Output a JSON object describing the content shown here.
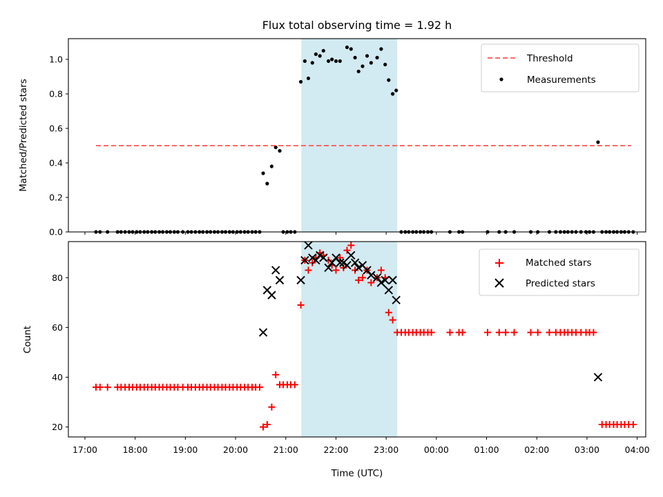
{
  "chart_data": [
    {
      "type": "scatter",
      "title": "Flux total observing time = 1.92 h",
      "ylabel": "Matched/Predicted stars",
      "xlabel": "",
      "ylim": [
        0,
        1.12
      ],
      "y_ticks": [
        "0.0",
        "0.2",
        "0.4",
        "0.6",
        "0.8",
        "1.0"
      ],
      "y_tick_values": [
        0,
        0.2,
        0.4,
        0.6,
        0.8,
        1.0
      ],
      "x_unit": "hours since 17:00 UTC",
      "xlim": [
        -0.33,
        11.17
      ],
      "x_tick_values": [
        0,
        1,
        2,
        3,
        4,
        5,
        6,
        7,
        8,
        9,
        10,
        11
      ],
      "shaded_interval": {
        "x": [
          4.31,
          6.22
        ],
        "color": "#add8e6"
      },
      "legend_placement": "upper-right",
      "threshold": {
        "name": "Threshold",
        "y": 0.5,
        "x": [
          0.22,
          10.88
        ],
        "color": "#ff6666",
        "style": "dashed"
      },
      "series": [
        {
          "name": "Measurements",
          "color": "#000000",
          "marker": "dot",
          "points": [
            [
              0.22,
              0
            ],
            [
              0.3,
              0
            ],
            [
              0.45,
              0
            ],
            [
              0.65,
              0
            ],
            [
              0.72,
              0
            ],
            [
              0.8,
              0
            ],
            [
              0.88,
              0
            ],
            [
              0.95,
              0
            ],
            [
              1.03,
              0
            ],
            [
              1.1,
              0
            ],
            [
              1.18,
              0
            ],
            [
              1.25,
              0
            ],
            [
              1.33,
              0
            ],
            [
              1.4,
              0
            ],
            [
              1.48,
              0
            ],
            [
              1.55,
              0
            ],
            [
              1.63,
              0
            ],
            [
              1.7,
              0
            ],
            [
              1.78,
              0
            ],
            [
              1.85,
              0
            ],
            [
              1.95,
              0
            ],
            [
              2.05,
              0
            ],
            [
              2.12,
              0
            ],
            [
              2.2,
              0
            ],
            [
              2.28,
              0
            ],
            [
              2.35,
              0
            ],
            [
              2.43,
              0
            ],
            [
              2.5,
              0
            ],
            [
              2.58,
              0
            ],
            [
              2.65,
              0
            ],
            [
              2.73,
              0
            ],
            [
              2.8,
              0
            ],
            [
              2.88,
              0
            ],
            [
              2.95,
              0
            ],
            [
              3.03,
              0
            ],
            [
              3.1,
              0
            ],
            [
              3.18,
              0
            ],
            [
              3.25,
              0
            ],
            [
              3.33,
              0
            ],
            [
              3.4,
              0
            ],
            [
              3.48,
              0
            ],
            [
              3.55,
              0.34
            ],
            [
              3.63,
              0.28
            ],
            [
              3.72,
              0.38
            ],
            [
              3.8,
              0.49
            ],
            [
              3.88,
              0.47
            ],
            [
              3.95,
              0
            ],
            [
              4.03,
              0
            ],
            [
              4.1,
              0
            ],
            [
              4.18,
              0
            ],
            [
              4.3,
              0.87
            ],
            [
              4.38,
              0.99
            ],
            [
              4.45,
              0.89
            ],
            [
              4.53,
              0.98
            ],
            [
              4.6,
              1.03
            ],
            [
              4.68,
              1.02
            ],
            [
              4.75,
              1.05
            ],
            [
              4.85,
              0.99
            ],
            [
              4.92,
              1.0
            ],
            [
              5.0,
              0.99
            ],
            [
              5.08,
              0.99
            ],
            [
              5.22,
              1.07
            ],
            [
              5.3,
              1.06
            ],
            [
              5.38,
              1.01
            ],
            [
              5.45,
              0.93
            ],
            [
              5.53,
              0.96
            ],
            [
              5.62,
              1.02
            ],
            [
              5.7,
              0.98
            ],
            [
              5.82,
              1.01
            ],
            [
              5.9,
              1.06
            ],
            [
              5.98,
              0.97
            ],
            [
              6.05,
              0.88
            ],
            [
              6.13,
              0.8
            ],
            [
              6.2,
              0.82
            ],
            [
              6.3,
              0
            ],
            [
              6.38,
              0
            ],
            [
              6.45,
              0
            ],
            [
              6.53,
              0
            ],
            [
              6.6,
              0
            ],
            [
              6.68,
              0
            ],
            [
              6.75,
              0
            ],
            [
              6.83,
              0
            ],
            [
              6.9,
              0
            ],
            [
              7.27,
              0
            ],
            [
              7.45,
              0
            ],
            [
              7.52,
              0
            ],
            [
              8.02,
              0
            ],
            [
              8.25,
              0
            ],
            [
              8.38,
              0
            ],
            [
              8.55,
              0
            ],
            [
              8.88,
              0
            ],
            [
              9.02,
              0
            ],
            [
              9.25,
              0
            ],
            [
              9.38,
              0
            ],
            [
              9.47,
              0
            ],
            [
              9.55,
              0
            ],
            [
              9.62,
              0
            ],
            [
              9.7,
              0
            ],
            [
              9.78,
              0
            ],
            [
              9.88,
              0
            ],
            [
              9.98,
              0
            ],
            [
              10.05,
              0
            ],
            [
              10.13,
              0
            ],
            [
              10.22,
              0.52
            ],
            [
              10.3,
              0
            ],
            [
              10.38,
              0
            ],
            [
              10.45,
              0
            ],
            [
              10.53,
              0
            ],
            [
              10.6,
              0
            ],
            [
              10.68,
              0
            ],
            [
              10.75,
              0
            ],
            [
              10.83,
              0
            ],
            [
              10.92,
              0
            ]
          ]
        }
      ]
    },
    {
      "type": "scatter",
      "title": "",
      "xlabel": "Time (UTC)",
      "ylabel": "Count",
      "ylim": [
        16,
        94.5
      ],
      "y_ticks": [
        "20",
        "40",
        "60",
        "80"
      ],
      "y_tick_values": [
        20,
        40,
        60,
        80
      ],
      "x_unit": "hours since 17:00 UTC",
      "xlim": [
        -0.33,
        11.17
      ],
      "x_ticks": [
        "17:00",
        "18:00",
        "19:00",
        "20:00",
        "21:00",
        "22:00",
        "23:00",
        "00:00",
        "01:00",
        "02:00",
        "03:00",
        "04:00"
      ],
      "x_tick_values": [
        0,
        1,
        2,
        3,
        4,
        5,
        6,
        7,
        8,
        9,
        10,
        11
      ],
      "shaded_interval": {
        "x": [
          4.31,
          6.22
        ],
        "color": "#add8e6"
      },
      "legend_placement": "upper-right",
      "series": [
        {
          "name": "Matched stars",
          "color": "#ff0000",
          "marker": "plus",
          "points": [
            [
              0.22,
              36
            ],
            [
              0.3,
              36
            ],
            [
              0.45,
              36
            ],
            [
              0.65,
              36
            ],
            [
              0.72,
              36
            ],
            [
              0.8,
              36
            ],
            [
              0.88,
              36
            ],
            [
              0.95,
              36
            ],
            [
              1.03,
              36
            ],
            [
              1.1,
              36
            ],
            [
              1.18,
              36
            ],
            [
              1.25,
              36
            ],
            [
              1.33,
              36
            ],
            [
              1.4,
              36
            ],
            [
              1.48,
              36
            ],
            [
              1.55,
              36
            ],
            [
              1.63,
              36
            ],
            [
              1.7,
              36
            ],
            [
              1.78,
              36
            ],
            [
              1.85,
              36
            ],
            [
              1.95,
              36
            ],
            [
              2.05,
              36
            ],
            [
              2.12,
              36
            ],
            [
              2.2,
              36
            ],
            [
              2.28,
              36
            ],
            [
              2.35,
              36
            ],
            [
              2.43,
              36
            ],
            [
              2.5,
              36
            ],
            [
              2.58,
              36
            ],
            [
              2.65,
              36
            ],
            [
              2.73,
              36
            ],
            [
              2.8,
              36
            ],
            [
              2.88,
              36
            ],
            [
              2.95,
              36
            ],
            [
              3.03,
              36
            ],
            [
              3.1,
              36
            ],
            [
              3.18,
              36
            ],
            [
              3.25,
              36
            ],
            [
              3.33,
              36
            ],
            [
              3.4,
              36
            ],
            [
              3.48,
              36
            ],
            [
              3.55,
              20
            ],
            [
              3.63,
              21
            ],
            [
              3.72,
              28
            ],
            [
              3.8,
              41
            ],
            [
              3.88,
              37
            ],
            [
              3.95,
              37
            ],
            [
              4.03,
              37
            ],
            [
              4.1,
              37
            ],
            [
              4.18,
              37
            ],
            [
              4.3,
              69
            ],
            [
              4.38,
              87
            ],
            [
              4.45,
              83
            ],
            [
              4.53,
              86
            ],
            [
              4.6,
              88
            ],
            [
              4.68,
              90
            ],
            [
              4.75,
              89
            ],
            [
              4.85,
              87
            ],
            [
              4.92,
              85
            ],
            [
              5.0,
              83
            ],
            [
              5.08,
              88
            ],
            [
              5.15,
              84
            ],
            [
              5.22,
              91
            ],
            [
              5.3,
              93
            ],
            [
              5.38,
              83
            ],
            [
              5.45,
              79
            ],
            [
              5.53,
              80
            ],
            [
              5.62,
              83
            ],
            [
              5.7,
              78
            ],
            [
              5.82,
              80
            ],
            [
              5.9,
              83
            ],
            [
              5.98,
              80
            ],
            [
              6.05,
              66
            ],
            [
              6.13,
              63
            ],
            [
              6.22,
              58
            ],
            [
              6.3,
              58
            ],
            [
              6.38,
              58
            ],
            [
              6.45,
              58
            ],
            [
              6.53,
              58
            ],
            [
              6.6,
              58
            ],
            [
              6.68,
              58
            ],
            [
              6.75,
              58
            ],
            [
              6.83,
              58
            ],
            [
              6.9,
              58
            ],
            [
              7.27,
              58
            ],
            [
              7.45,
              58
            ],
            [
              7.52,
              58
            ],
            [
              8.02,
              58
            ],
            [
              8.25,
              58
            ],
            [
              8.38,
              58
            ],
            [
              8.55,
              58
            ],
            [
              8.88,
              58
            ],
            [
              9.02,
              58
            ],
            [
              9.25,
              58
            ],
            [
              9.38,
              58
            ],
            [
              9.47,
              58
            ],
            [
              9.55,
              58
            ],
            [
              9.62,
              58
            ],
            [
              9.7,
              58
            ],
            [
              9.78,
              58
            ],
            [
              9.88,
              58
            ],
            [
              9.98,
              58
            ],
            [
              10.05,
              58
            ],
            [
              10.13,
              58
            ],
            [
              10.3,
              21
            ],
            [
              10.38,
              21
            ],
            [
              10.45,
              21
            ],
            [
              10.53,
              21
            ],
            [
              10.6,
              21
            ],
            [
              10.68,
              21
            ],
            [
              10.75,
              21
            ],
            [
              10.83,
              21
            ],
            [
              10.92,
              21
            ]
          ]
        },
        {
          "name": "Predicted stars",
          "color": "#000000",
          "marker": "x",
          "points": [
            [
              3.55,
              58
            ],
            [
              3.63,
              75
            ],
            [
              3.72,
              73
            ],
            [
              3.8,
              83
            ],
            [
              3.88,
              79
            ],
            [
              4.3,
              79
            ],
            [
              4.38,
              87
            ],
            [
              4.45,
              93
            ],
            [
              4.53,
              88
            ],
            [
              4.6,
              87
            ],
            [
              4.68,
              89
            ],
            [
              4.75,
              88
            ],
            [
              4.85,
              84
            ],
            [
              4.92,
              86
            ],
            [
              5.0,
              88
            ],
            [
              5.08,
              86
            ],
            [
              5.15,
              86
            ],
            [
              5.22,
              85
            ],
            [
              5.3,
              89
            ],
            [
              5.38,
              86
            ],
            [
              5.45,
              84
            ],
            [
              5.53,
              85
            ],
            [
              5.62,
              83
            ],
            [
              5.7,
              81
            ],
            [
              5.82,
              80
            ],
            [
              5.9,
              78
            ],
            [
              5.98,
              79
            ],
            [
              6.05,
              75
            ],
            [
              6.13,
              79
            ],
            [
              6.2,
              71
            ],
            [
              10.22,
              40
            ]
          ]
        }
      ]
    }
  ]
}
